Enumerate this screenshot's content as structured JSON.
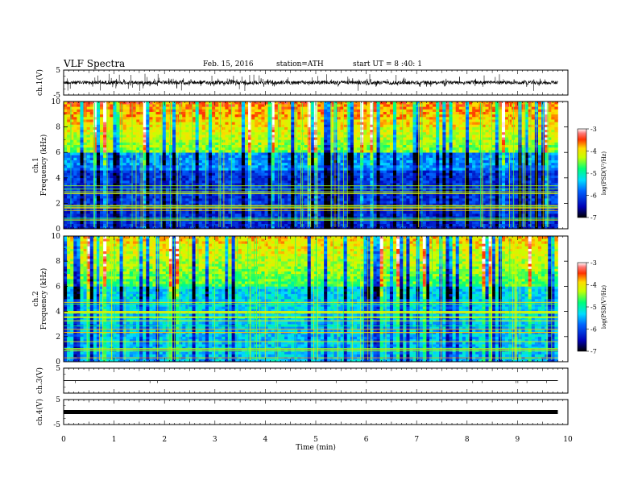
{
  "header": {
    "title": "VLF Spectra",
    "date": "Feb. 15, 2016",
    "station": "station=ATH",
    "start": "start  UT =   8 :40: 1"
  },
  "chart_data": [
    {
      "type": "line",
      "name": "ch1-waveform",
      "ylabel": "ch.1(V)",
      "ylim": [
        -5,
        5
      ],
      "yticks": [
        "5",
        "-5"
      ],
      "xlim": [
        0,
        10
      ],
      "trace_extent": [
        0,
        9.8
      ],
      "color": "#000000"
    },
    {
      "type": "heatmap",
      "name": "ch1-spectrogram",
      "ylabel": "ch.1\nFrequency  (kHz)",
      "ylabel_lines": [
        "ch.1",
        "Frequency  (kHz)"
      ],
      "ylim": [
        0,
        10
      ],
      "yticks": [
        "0",
        "2",
        "4",
        "6",
        "8",
        "10"
      ],
      "xlim": [
        0,
        10
      ],
      "data_extent": [
        0,
        9.8
      ],
      "colorbar": {
        "label": "log(PSD(V²/Hz)",
        "range": [
          -7,
          -3
        ],
        "ticks": [
          "-3",
          "-4",
          "-5",
          "-6",
          "-7"
        ]
      }
    },
    {
      "type": "heatmap",
      "name": "ch2-spectrogram",
      "ylabel": "ch.2\nFrequency  (kHz)",
      "ylabel_lines": [
        "ch.2",
        "Frequency  (kHz)"
      ],
      "ylim": [
        0,
        10
      ],
      "yticks": [
        "0",
        "2",
        "4",
        "6",
        "8",
        "10"
      ],
      "xlim": [
        0,
        10
      ],
      "data_extent": [
        0,
        9.8
      ],
      "colorbar": {
        "label": "log(PSD(V²/Hz)",
        "range": [
          -7,
          -3
        ],
        "ticks": [
          "-3",
          "-4",
          "-5",
          "-6",
          "-7"
        ]
      }
    },
    {
      "type": "line",
      "name": "ch3-waveform",
      "ylabel": "ch.3(V)",
      "ylim": [
        -5,
        5
      ],
      "yticks": [
        "5",
        ""
      ],
      "xlim": [
        0,
        10
      ],
      "trace_extent": [
        0,
        9.8
      ],
      "color": "#000000"
    },
    {
      "type": "line",
      "name": "ch4-waveform",
      "ylabel": "ch.4(V)",
      "ylim": [
        -5,
        5
      ],
      "yticks": [
        "5",
        "-5"
      ],
      "xlim": [
        0,
        10
      ],
      "trace_extent": [
        0,
        9.8
      ],
      "color": "#000000"
    }
  ],
  "xaxis": {
    "label": "Time  (min)",
    "ticks": [
      "0",
      "1",
      "2",
      "3",
      "4",
      "5",
      "6",
      "7",
      "8",
      "9",
      "10"
    ]
  }
}
